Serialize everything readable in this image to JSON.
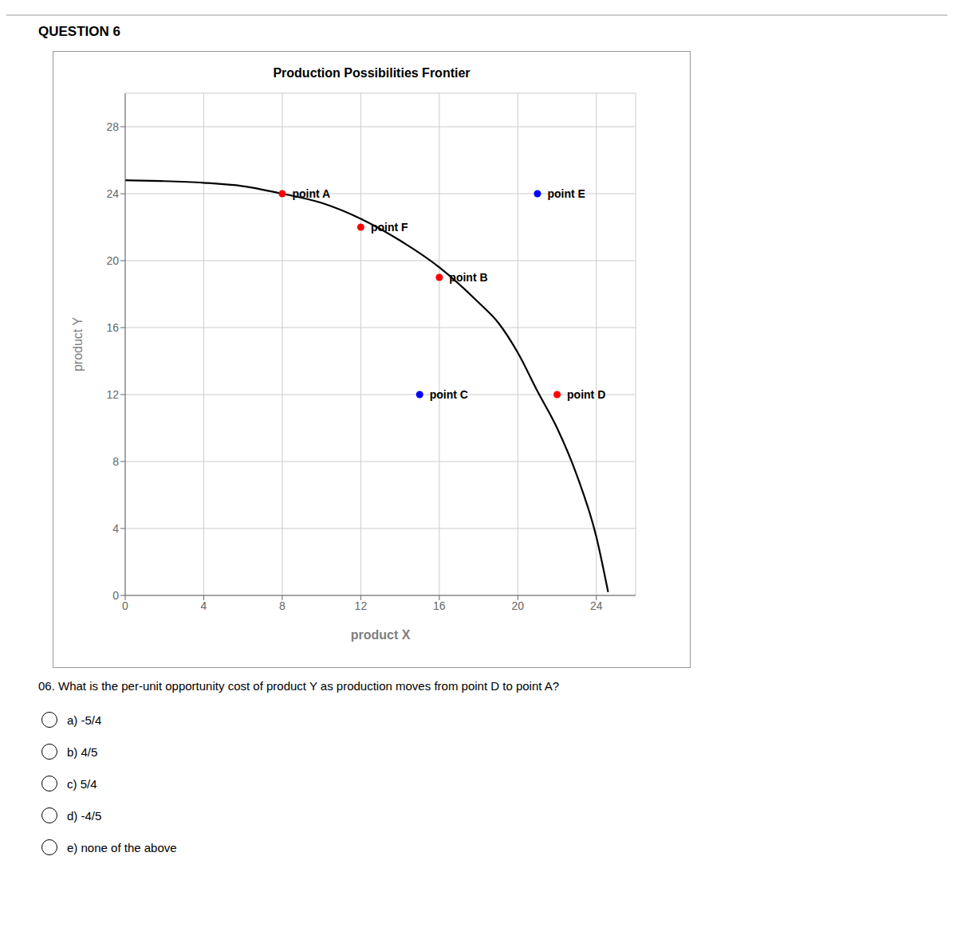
{
  "chart_data": {
    "type": "line",
    "title": "Production Possibilities Frontier",
    "question_header": "QUESTION 6",
    "question_text": "06. What is the per-unit opportunity cost of product Y as production moves from point D to point A?",
    "choices": [
      "a) -5/4",
      "b) 4/5",
      "c) 5/4",
      "d) -4/5",
      "e) none of the above"
    ],
    "x_label": "product X",
    "y_label": "product Y",
    "xlim": [
      0,
      26
    ],
    "ylim": [
      0,
      30
    ],
    "xticks": [
      0,
      4,
      8,
      12,
      16,
      20,
      24
    ],
    "yticks": [
      0,
      4,
      8,
      12,
      16,
      20,
      24,
      28
    ],
    "grid": true,
    "series": [
      {
        "type": "line",
        "color": "#000000",
        "x": [
          0,
          2,
          4,
          6,
          8,
          10,
          12,
          14,
          16,
          18,
          19,
          20,
          21,
          22,
          23,
          24,
          24.6
        ],
        "values": [
          24.8,
          24.75,
          24.65,
          24.45,
          24.0,
          23.45,
          22.5,
          21.2,
          19.6,
          17.5,
          16.3,
          14.5,
          12.2,
          10.0,
          7.2,
          3.5,
          0.2
        ]
      },
      {
        "type": "scatter",
        "x": [
          8,
          12,
          16,
          15,
          22,
          21
        ],
        "values": [
          24,
          22,
          19,
          12,
          12,
          24
        ],
        "colors": [
          "#ff0000",
          "#ff0000",
          "#ff0000",
          "#0000ff",
          "#ff0000",
          "#0000ff"
        ],
        "labels": [
          "point A",
          "point F",
          "point B",
          "point C",
          "point D",
          "point E"
        ]
      }
    ]
  }
}
